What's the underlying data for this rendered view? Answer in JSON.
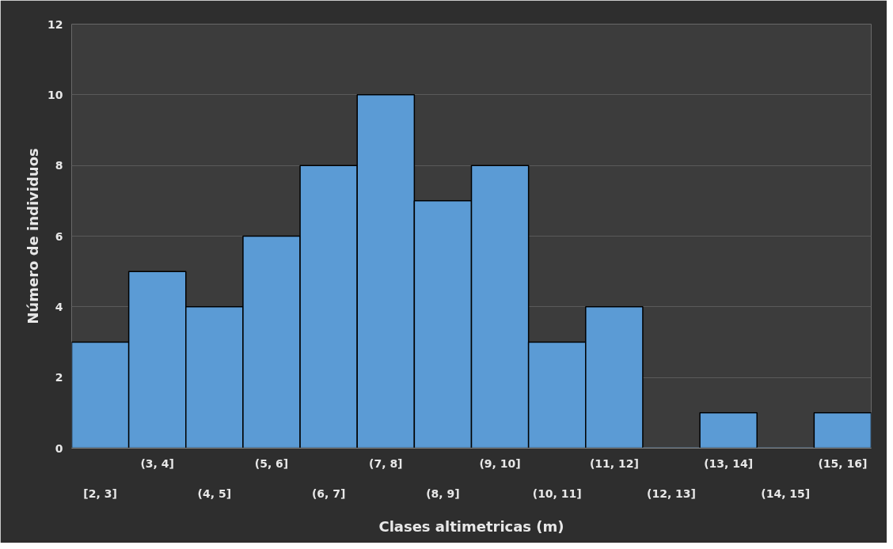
{
  "chart_data": {
    "type": "bar",
    "categories": [
      "[2, 3]",
      "(3, 4]",
      "(4, 5]",
      "(5, 6]",
      "(6, 7]",
      "(7, 8]",
      "(8, 9]",
      "(9, 10]",
      "(10, 11]",
      "(11, 12]",
      "(12, 13]",
      "(13, 14]",
      "(14, 15]",
      "(15, 16]"
    ],
    "values": [
      3,
      5,
      4,
      6,
      8,
      10,
      7,
      8,
      3,
      4,
      0,
      1,
      0,
      1
    ],
    "color": "#5b9bd5",
    "xlabel": "Clases altimetricas (m)",
    "ylabel": "Número de individuos",
    "ylim": [
      0,
      12
    ],
    "yticks": [
      0,
      2,
      4,
      6,
      8,
      10,
      12
    ],
    "grid": "y"
  }
}
